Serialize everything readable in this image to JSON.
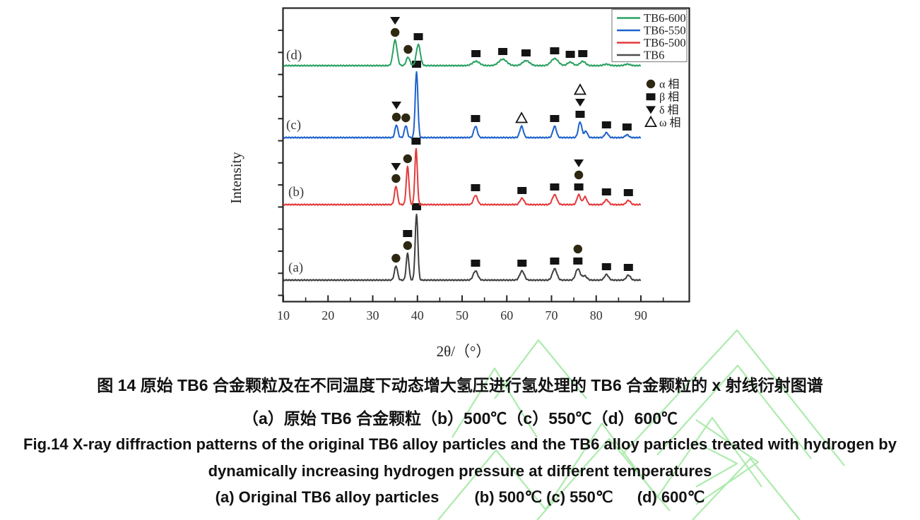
{
  "page": {
    "background": "#ffffff"
  },
  "figure": {
    "axes": {
      "ylabel": "Intensity",
      "xlabel": "2θ/（°）"
    },
    "legend": {
      "items": [
        {
          "label": "TB6-600",
          "color": "#2aa162"
        },
        {
          "label": "TB6-550",
          "color": "#1e62cc"
        },
        {
          "label": "TB6-500",
          "color": "#e43a3c"
        },
        {
          "label": "TB6",
          "color": "#4d4d4d"
        }
      ]
    },
    "phase_legend": {
      "items": [
        {
          "symbol": "circle",
          "label": "α 相"
        },
        {
          "symbol": "square",
          "label": "β 相"
        },
        {
          "symbol": "tri-down",
          "label": "δ 相"
        },
        {
          "symbol": "tri-up-open",
          "label": "ω 相"
        }
      ]
    },
    "marker_colors": {
      "circle": "#2e2812",
      "square": "#141414",
      "tri_down": "#141414",
      "tri_up_stroke": "#141414",
      "tri_up_fill": "#ffffff"
    },
    "watermark_color": "#9fe89f"
  },
  "chart_data": {
    "type": "line",
    "title": "",
    "xlabel": "2θ/（°）",
    "ylabel": "Intensity",
    "xlim": [
      10,
      100
    ],
    "x_ticks": [
      10,
      20,
      30,
      40,
      50,
      60,
      70,
      80,
      90
    ],
    "grid": false,
    "legend_position": "top-right",
    "note": "Four stacked XRD traces, intensity in arbitrary units; peak x in degrees 2-theta, h = peak height in screen px above each trace baseline",
    "series": [
      {
        "name": "TB6",
        "curve_label": "(a)",
        "color": "#3f3f3f",
        "baseline_y": 397,
        "label_x": 408,
        "label_y": 385,
        "peaks": [
          {
            "x": 35.2,
            "h": 20,
            "w": 0.35
          },
          {
            "x": 37.8,
            "h": 38,
            "w": 0.3
          },
          {
            "x": 39.8,
            "h": 93,
            "w": 0.3
          },
          {
            "x": 53.0,
            "h": 13,
            "w": 0.5
          },
          {
            "x": 63.4,
            "h": 13,
            "w": 0.5
          },
          {
            "x": 70.7,
            "h": 16,
            "w": 0.5
          },
          {
            "x": 75.9,
            "h": 16,
            "w": 0.5
          },
          {
            "x": 77.4,
            "h": 6,
            "w": 0.5
          },
          {
            "x": 82.3,
            "h": 8,
            "w": 0.45
          },
          {
            "x": 87.2,
            "h": 7,
            "w": 0.45
          }
        ],
        "markers": [
          {
            "x": 35.2,
            "symbols": [
              "circle"
            ]
          },
          {
            "x": 37.8,
            "symbols": [
              "circle",
              "square"
            ]
          },
          {
            "x": 39.8,
            "symbols": [
              "square"
            ]
          },
          {
            "x": 53.0,
            "symbols": [
              "square"
            ]
          },
          {
            "x": 63.4,
            "symbols": [
              "square"
            ]
          },
          {
            "x": 70.7,
            "symbols": [
              "square"
            ]
          },
          {
            "x": 75.9,
            "symbols": [
              "square",
              "circle"
            ]
          },
          {
            "x": 82.3,
            "symbols": [
              "square"
            ]
          },
          {
            "x": 87.2,
            "symbols": [
              "square"
            ]
          }
        ]
      },
      {
        "name": "TB6-500",
        "curve_label": "(b)",
        "color": "#e43a3c",
        "baseline_y": 290,
        "label_x": 408,
        "label_y": 278,
        "peaks": [
          {
            "x": 35.2,
            "h": 26,
            "w": 0.33
          },
          {
            "x": 37.8,
            "h": 54,
            "w": 0.3
          },
          {
            "x": 39.7,
            "h": 79,
            "w": 0.28
          },
          {
            "x": 53.0,
            "h": 13,
            "w": 0.45
          },
          {
            "x": 63.4,
            "h": 9,
            "w": 0.45
          },
          {
            "x": 70.7,
            "h": 14,
            "w": 0.5
          },
          {
            "x": 76.1,
            "h": 14,
            "w": 0.4
          },
          {
            "x": 77.5,
            "h": 11,
            "w": 0.4
          },
          {
            "x": 82.3,
            "h": 7,
            "w": 0.45
          },
          {
            "x": 87.2,
            "h": 6,
            "w": 0.45
          }
        ],
        "markers": [
          {
            "x": 35.2,
            "symbols": [
              "circle",
              "tri-down"
            ]
          },
          {
            "x": 37.8,
            "symbols": [
              "circle"
            ]
          },
          {
            "x": 39.7,
            "symbols": [
              "square"
            ]
          },
          {
            "x": 53.0,
            "symbols": [
              "square"
            ]
          },
          {
            "x": 63.4,
            "symbols": [
              "square"
            ]
          },
          {
            "x": 70.7,
            "symbols": [
              "square"
            ]
          },
          {
            "x": 76.1,
            "symbols": [
              "square",
              "circle",
              "tri-down"
            ]
          },
          {
            "x": 82.3,
            "symbols": [
              "square"
            ]
          },
          {
            "x": 87.2,
            "symbols": [
              "square"
            ]
          }
        ]
      },
      {
        "name": "TB6-550",
        "curve_label": "(c)",
        "color": "#1e62cc",
        "baseline_y": 195,
        "label_x": 405,
        "label_y": 183,
        "peaks": [
          {
            "x": 35.3,
            "h": 18,
            "w": 0.32
          },
          {
            "x": 37.4,
            "h": 17,
            "w": 0.32
          },
          {
            "x": 39.8,
            "h": 93,
            "w": 0.3
          },
          {
            "x": 53.0,
            "h": 16,
            "w": 0.4
          },
          {
            "x": 63.3,
            "h": 16,
            "w": 0.4
          },
          {
            "x": 70.7,
            "h": 16,
            "w": 0.4
          },
          {
            "x": 76.4,
            "h": 22,
            "w": 0.4
          },
          {
            "x": 77.7,
            "h": 9,
            "w": 0.35
          },
          {
            "x": 82.3,
            "h": 7,
            "w": 0.4
          },
          {
            "x": 86.9,
            "h": 4,
            "w": 0.4
          }
        ],
        "markers": [
          {
            "x": 35.3,
            "symbols": [
              "circle",
              "tri-down"
            ]
          },
          {
            "x": 37.4,
            "symbols": [
              "circle"
            ]
          },
          {
            "x": 39.8,
            "symbols": [
              "square"
            ]
          },
          {
            "x": 53.0,
            "symbols": [
              "square"
            ]
          },
          {
            "x": 63.3,
            "symbols": [
              "tri-up-open"
            ]
          },
          {
            "x": 70.7,
            "symbols": [
              "square"
            ]
          },
          {
            "x": 76.4,
            "symbols": [
              "square",
              "tri-down",
              "tri-up-open"
            ]
          },
          {
            "x": 82.3,
            "symbols": [
              "square"
            ]
          },
          {
            "x": 86.9,
            "symbols": [
              "square"
            ]
          }
        ]
      },
      {
        "name": "TB6-600",
        "curve_label": "(d)",
        "color": "#2aa162",
        "baseline_y": 93,
        "label_x": 405,
        "label_y": 84,
        "peaks": [
          {
            "x": 35.0,
            "h": 36,
            "w": 0.45
          },
          {
            "x": 37.9,
            "h": 12,
            "w": 0.4
          },
          {
            "x": 40.2,
            "h": 30,
            "w": 0.45
          },
          {
            "x": 53.1,
            "h": 6,
            "w": 0.8
          },
          {
            "x": 59.1,
            "h": 9,
            "w": 0.9
          },
          {
            "x": 64.3,
            "h": 7,
            "w": 0.8
          },
          {
            "x": 70.7,
            "h": 10,
            "w": 0.8
          },
          {
            "x": 74.2,
            "h": 5,
            "w": 0.6
          },
          {
            "x": 77.0,
            "h": 6,
            "w": 0.6
          },
          {
            "x": 82.3,
            "h": 2,
            "w": 0.6
          },
          {
            "x": 87.0,
            "h": 2,
            "w": 0.6
          }
        ],
        "markers": [
          {
            "x": 35.0,
            "symbols": [
              "circle",
              "tri-down"
            ]
          },
          {
            "x": 37.9,
            "symbols": [
              "circle"
            ]
          },
          {
            "x": 40.2,
            "symbols": [
              "square"
            ]
          },
          {
            "x": 53.1,
            "symbols": [
              "square"
            ]
          },
          {
            "x": 59.1,
            "symbols": [
              "square"
            ]
          },
          {
            "x": 64.3,
            "symbols": [
              "square"
            ]
          },
          {
            "x": 70.7,
            "symbols": [
              "square"
            ]
          },
          {
            "x": 74.2,
            "symbols": [
              "square"
            ]
          },
          {
            "x": 77.0,
            "symbols": [
              "square"
            ]
          }
        ]
      }
    ]
  },
  "captions": {
    "line1_zh": "图 14 原始 TB6 合金颗粒及在不同温度下动态增大氢压进行氢处理的 TB6 合金颗粒的 x 射线衍射图谱",
    "line2_zh": "（a）原始 TB6 合金颗粒（b）500℃（c）550℃（d）600℃",
    "line3_en": "Fig.14 X-ray diffraction patterns of the original TB6 alloy particles and the TB6 alloy particles treated with hydrogen by",
    "line4_en": "dynamically increasing hydrogen pressure at different temperatures",
    "line5_parts": [
      "(a) Original TB6 alloy particles",
      "(b) 500℃ (c) 550℃",
      "(d) 600℃"
    ]
  }
}
